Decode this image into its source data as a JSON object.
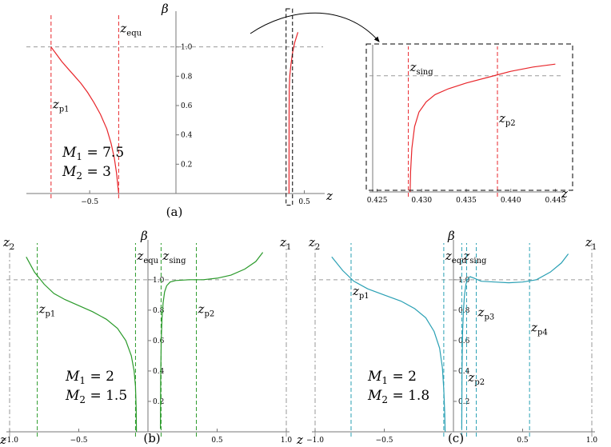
{
  "figure": {
    "colors": {
      "red": "#e8262b",
      "green": "#2a9a2a",
      "cyan": "#2aa0b4",
      "dash": "#9a9a9a",
      "axis": "#777777"
    }
  },
  "chart_data": [
    {
      "type": "line",
      "caption": "(a)",
      "xlabel": "z",
      "ylabel": "β",
      "xlim": [
        -0.78,
        0.58
      ],
      "ylim": [
        0,
        1.2
      ],
      "xticks": [
        {
          "v": -0.5,
          "t": "−0.5"
        },
        {
          "v": 0.5,
          "t": "0.5"
        }
      ],
      "yticks": [
        {
          "v": 0.2,
          "t": "0.2"
        },
        {
          "v": 0.4,
          "t": "0.4"
        },
        {
          "v": 0.6,
          "t": "0.6"
        },
        {
          "v": 0.8,
          "t": "0.8"
        },
        {
          "v": 1.0,
          "t": "1.0"
        }
      ],
      "hlines": [
        1.0
      ],
      "series": [
        {
          "color": "red",
          "x": [
            -0.68,
            -0.66,
            -0.63,
            -0.6,
            -0.57,
            -0.54,
            -0.51,
            -0.48,
            -0.45,
            -0.42,
            -0.4,
            -0.385,
            -0.375,
            -0.37,
            -0.365
          ],
          "y": [
            1.0,
            0.96,
            0.9,
            0.85,
            0.8,
            0.75,
            0.69,
            0.62,
            0.54,
            0.44,
            0.34,
            0.24,
            0.14,
            0.07,
            0.0
          ]
        },
        {
          "color": "red",
          "x": [
            0.4288,
            0.4292,
            0.43,
            0.432,
            0.4375,
            0.445,
            0.455,
            0.47
          ],
          "y": [
            0.0,
            0.55,
            0.72,
            0.8,
            0.88,
            0.96,
            1.03,
            1.1
          ]
        }
      ],
      "vlines": [
        {
          "x": -0.68,
          "color": "red",
          "label": "z",
          "sub": "p1",
          "ly": 0.58
        },
        {
          "x": -0.365,
          "color": "red",
          "label": "z",
          "sub": "equ",
          "ly": 1.1
        }
      ],
      "insetbox": {
        "x": [
          0.415,
          0.445
        ],
        "y": [
          -0.08,
          1.26
        ]
      },
      "annotations": [
        {
          "text": "M",
          "sub": "1",
          "eq": " = 7.5"
        },
        {
          "text": "M",
          "sub": "2",
          "eq": " = 3"
        }
      ]
    },
    {
      "type": "line",
      "caption": "",
      "xlabel": "z",
      "ylabel": "",
      "xlim": [
        0.4245,
        0.4455
      ],
      "ylim": [
        0,
        0.98
      ],
      "xticks": [
        {
          "v": 0.425,
          "t": "0.425"
        },
        {
          "v": 0.43,
          "t": "0.430"
        },
        {
          "v": 0.435,
          "t": "0.435"
        },
        {
          "v": 0.44,
          "t": "0.440"
        },
        {
          "v": 0.445,
          "t": "0.445"
        }
      ],
      "yticks": [],
      "hlines": [
        0.8
      ],
      "series": [
        {
          "color": "red",
          "x": [
            0.4287,
            0.42875,
            0.4289,
            0.4292,
            0.4297,
            0.4305,
            0.4315,
            0.433,
            0.435,
            0.4375,
            0.44,
            0.4425,
            0.445
          ],
          "y": [
            0.0,
            0.14,
            0.3,
            0.45,
            0.55,
            0.62,
            0.67,
            0.71,
            0.75,
            0.79,
            0.83,
            0.86,
            0.88
          ]
        }
      ],
      "vlines": [
        {
          "x": 0.4285,
          "color": "red",
          "label": "z",
          "sub": "sing",
          "ly": 0.83
        },
        {
          "x": 0.4385,
          "color": "red",
          "label": "z",
          "sub": "p2",
          "ly": 0.48
        }
      ],
      "annotations": []
    },
    {
      "type": "line",
      "caption": "(b)",
      "xlabel": "z",
      "ylabel": "β",
      "xlim": [
        -1.0,
        1.0
      ],
      "ylim": [
        0,
        1.22
      ],
      "xticks": [
        {
          "v": -1.0,
          "t": "−1.0"
        },
        {
          "v": -0.5,
          "t": "−0.5"
        },
        {
          "v": 0.5,
          "t": "0.5"
        },
        {
          "v": 1.0,
          "t": "1.0"
        }
      ],
      "yticks": [
        {
          "v": 0.2,
          "t": "0.2"
        },
        {
          "v": 0.4,
          "t": "0.4"
        },
        {
          "v": 0.6,
          "t": "0.6"
        },
        {
          "v": 0.8,
          "t": "0.8"
        },
        {
          "v": 1.0,
          "t": "1.0"
        }
      ],
      "hlines": [
        1.0
      ],
      "series": [
        {
          "color": "green",
          "x": [
            -0.88,
            -0.82,
            -0.75,
            -0.68,
            -0.6,
            -0.5,
            -0.4,
            -0.3,
            -0.22,
            -0.16,
            -0.12,
            -0.1,
            -0.09,
            -0.085,
            -0.083
          ],
          "y": [
            1.15,
            1.05,
            0.97,
            0.91,
            0.87,
            0.83,
            0.79,
            0.74,
            0.68,
            0.6,
            0.5,
            0.4,
            0.3,
            0.15,
            0.0
          ]
        },
        {
          "color": "green",
          "x": [
            0.09,
            0.092,
            0.096,
            0.102,
            0.11,
            0.12,
            0.135,
            0.16,
            0.2,
            0.3,
            0.4,
            0.5,
            0.6,
            0.7,
            0.78,
            0.83
          ],
          "y": [
            0.02,
            0.35,
            0.6,
            0.75,
            0.85,
            0.92,
            0.96,
            0.985,
            0.995,
            1.0,
            1.0,
            1.01,
            1.03,
            1.07,
            1.12,
            1.18
          ]
        }
      ],
      "vlines": [
        {
          "x": -0.8,
          "color": "green",
          "label": "z",
          "sub": "p1",
          "ly": 0.78
        },
        {
          "x": -0.09,
          "color": "green",
          "label": "z",
          "sub": "equ",
          "ly": 1.13
        },
        {
          "x": 0.095,
          "color": "green",
          "label": "z",
          "sub": "sing",
          "ly": 1.13
        },
        {
          "x": 0.35,
          "color": "green",
          "label": "z",
          "sub": "p2",
          "ly": 0.78
        },
        {
          "x": -1.0,
          "color": "dash",
          "label": "z",
          "sub": "2",
          "ly": 1.22,
          "lpos": "left"
        },
        {
          "x": 1.0,
          "color": "dash",
          "label": "z",
          "sub": "1",
          "ly": 1.22,
          "lpos": "left"
        }
      ],
      "annotations": [
        {
          "text": "M",
          "sub": "1",
          "eq": " = 2"
        },
        {
          "text": "M",
          "sub": "2",
          "eq": " = 1.5"
        }
      ]
    },
    {
      "type": "line",
      "caption": "(c)",
      "xlabel": "z",
      "ylabel": "β",
      "xlim": [
        -1.0,
        1.0
      ],
      "ylim": [
        0,
        1.22
      ],
      "xticks": [
        {
          "v": -1.0,
          "t": "−1.0"
        },
        {
          "v": -0.5,
          "t": "−0.5"
        },
        {
          "v": 0.5,
          "t": "0.5"
        },
        {
          "v": 1.0,
          "t": "1.0"
        }
      ],
      "yticks": [
        {
          "v": 0.2,
          "t": "0.2"
        },
        {
          "v": 0.4,
          "t": "0.4"
        },
        {
          "v": 0.6,
          "t": "0.6"
        },
        {
          "v": 0.8,
          "t": "0.8"
        },
        {
          "v": 1.0,
          "t": "1.0"
        }
      ],
      "hlines": [
        1.0
      ],
      "series": [
        {
          "color": "cyan",
          "x": [
            -0.88,
            -0.8,
            -0.72,
            -0.62,
            -0.5,
            -0.38,
            -0.28,
            -0.2,
            -0.14,
            -0.1,
            -0.08,
            -0.07,
            -0.063,
            -0.06
          ],
          "y": [
            1.15,
            1.06,
            0.99,
            0.94,
            0.9,
            0.86,
            0.81,
            0.75,
            0.66,
            0.55,
            0.42,
            0.28,
            0.12,
            0.0
          ]
        },
        {
          "color": "cyan",
          "x": [
            0.06,
            0.062,
            0.066,
            0.072,
            0.08,
            0.09,
            0.1,
            0.12,
            0.15,
            0.2,
            0.3,
            0.4,
            0.5,
            0.6,
            0.7,
            0.78,
            0.83
          ],
          "y": [
            0.02,
            0.4,
            0.65,
            0.8,
            0.9,
            0.97,
            1.0,
            1.02,
            1.01,
            0.99,
            0.985,
            0.98,
            0.985,
            1.0,
            1.05,
            1.11,
            1.17
          ]
        }
      ],
      "vlines": [
        {
          "x": -0.74,
          "color": "cyan",
          "label": "z",
          "sub": "p1",
          "ly": 0.9
        },
        {
          "x": -0.07,
          "color": "cyan",
          "label": "z",
          "sub": "equ",
          "ly": 1.13
        },
        {
          "x": 0.06,
          "color": "cyan",
          "label": "z",
          "sub": "sing",
          "ly": 1.13
        },
        {
          "x": 0.095,
          "color": "cyan",
          "label": "z",
          "sub": "p2",
          "ly": 0.33
        },
        {
          "x": 0.165,
          "color": "cyan",
          "label": "z",
          "sub": "p3",
          "ly": 0.76
        },
        {
          "x": 0.55,
          "color": "cyan",
          "label": "z",
          "sub": "p4",
          "ly": 0.66
        },
        {
          "x": -1.0,
          "color": "dash",
          "label": "z",
          "sub": "2",
          "ly": 1.22,
          "lpos": "left"
        },
        {
          "x": 1.0,
          "color": "dash",
          "label": "z",
          "sub": "1",
          "ly": 1.22,
          "lpos": "left"
        }
      ],
      "annotations": [
        {
          "text": "M",
          "sub": "1",
          "eq": " = 2"
        },
        {
          "text": "M",
          "sub": "2",
          "eq": " = 1.8"
        }
      ]
    }
  ]
}
